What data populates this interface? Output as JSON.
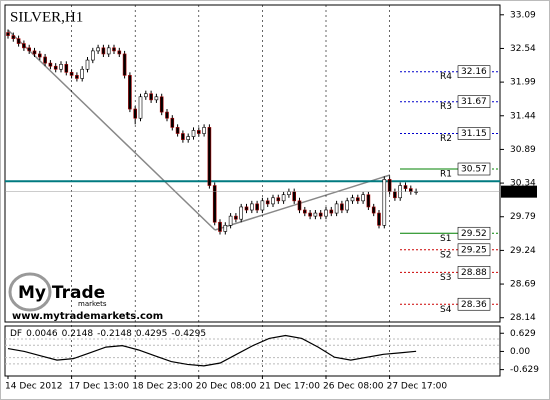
{
  "chart_data": {
    "type": "candlestick",
    "title": "SILVER,H1",
    "categories": [
      "14 Dec 2012",
      null,
      null,
      null,
      null,
      null,
      null,
      null,
      null,
      null,
      null,
      null,
      "17 Dec 13:00",
      null,
      null,
      null,
      null,
      null,
      null,
      null,
      null,
      null,
      null,
      null,
      "18 Dec 23:00",
      null,
      null,
      null,
      null,
      null,
      null,
      null,
      null,
      null,
      null,
      null,
      "20 Dec 08:00",
      null,
      null,
      null,
      null,
      null,
      null,
      null,
      null,
      null,
      null,
      null,
      "21 Dec 17:00",
      null,
      null,
      null,
      null,
      null,
      null,
      null,
      null,
      null,
      null,
      null,
      "26 Dec 08:00",
      null,
      null,
      null,
      null,
      null,
      null,
      null,
      null,
      null,
      null,
      null,
      "27 Dec 17:00",
      null,
      null,
      null,
      null,
      null
    ],
    "open": [
      32.8,
      32.75,
      32.7,
      32.62,
      32.55,
      32.5,
      32.45,
      32.4,
      32.3,
      32.25,
      32.2,
      32.28,
      32.15,
      32.1,
      32.05,
      32.2,
      32.35,
      32.5,
      32.55,
      32.45,
      32.55,
      32.5,
      32.45,
      32.1,
      31.55,
      31.4,
      31.75,
      31.8,
      31.7,
      31.75,
      31.5,
      31.4,
      31.25,
      31.15,
      31.05,
      31.1,
      31.2,
      31.15,
      31.25,
      30.3,
      29.7,
      29.55,
      29.65,
      29.8,
      29.75,
      29.95,
      29.9,
      30.0,
      29.9,
      30.05,
      30.0,
      30.1,
      30.05,
      30.15,
      30.2,
      30.05,
      29.9,
      29.85,
      29.8,
      29.85,
      29.8,
      29.9,
      29.85,
      30.0,
      29.9,
      30.05,
      30.1,
      30.05,
      30.15,
      29.95,
      29.85,
      29.65,
      30.4,
      30.2,
      30.1,
      30.3,
      30.25,
      30.2
    ],
    "high": [
      32.85,
      32.8,
      32.75,
      32.67,
      32.6,
      32.55,
      32.5,
      32.45,
      32.35,
      32.3,
      32.33,
      32.33,
      32.2,
      32.15,
      32.25,
      32.4,
      32.55,
      32.6,
      32.6,
      32.6,
      32.6,
      32.55,
      32.5,
      32.15,
      31.6,
      31.8,
      31.85,
      31.85,
      31.8,
      31.8,
      31.55,
      31.45,
      31.3,
      31.2,
      31.15,
      31.25,
      31.25,
      31.3,
      31.3,
      30.35,
      29.75,
      29.7,
      29.85,
      29.85,
      30.0,
      30.0,
      30.05,
      30.05,
      30.1,
      30.1,
      30.15,
      30.15,
      30.2,
      30.25,
      30.25,
      30.1,
      29.95,
      29.9,
      29.9,
      29.9,
      29.95,
      29.95,
      30.05,
      30.05,
      30.1,
      30.15,
      30.15,
      30.2,
      30.2,
      30.0,
      29.9,
      30.45,
      30.45,
      30.25,
      30.35,
      30.35,
      30.3,
      30.25
    ],
    "low": [
      32.7,
      32.65,
      32.57,
      32.5,
      32.45,
      32.4,
      32.35,
      32.25,
      32.2,
      32.15,
      32.15,
      32.1,
      32.05,
      32.0,
      32.0,
      32.15,
      32.3,
      32.45,
      32.4,
      32.4,
      32.45,
      32.4,
      32.05,
      31.5,
      31.3,
      31.35,
      31.7,
      31.65,
      31.65,
      31.45,
      31.35,
      31.2,
      31.1,
      31.0,
      31.0,
      31.05,
      31.1,
      31.1,
      30.25,
      29.65,
      29.5,
      29.5,
      29.6,
      29.7,
      29.7,
      29.85,
      29.85,
      29.85,
      29.85,
      29.95,
      29.95,
      30.0,
      30.0,
      30.1,
      30.0,
      29.85,
      29.8,
      29.75,
      29.75,
      29.75,
      29.75,
      29.8,
      29.8,
      29.85,
      29.85,
      30.0,
      30.0,
      30.0,
      29.9,
      29.8,
      29.6,
      29.6,
      30.15,
      30.05,
      30.05,
      30.2,
      30.15,
      30.15
    ],
    "close": [
      32.75,
      32.7,
      32.62,
      32.55,
      32.5,
      32.45,
      32.4,
      32.3,
      32.25,
      32.2,
      32.28,
      32.15,
      32.1,
      32.05,
      32.2,
      32.35,
      32.5,
      32.55,
      32.45,
      32.55,
      32.5,
      32.45,
      32.1,
      31.55,
      31.4,
      31.75,
      31.8,
      31.7,
      31.75,
      31.5,
      31.4,
      31.25,
      31.15,
      31.05,
      31.1,
      31.2,
      31.15,
      31.25,
      30.3,
      29.7,
      29.55,
      29.65,
      29.8,
      29.75,
      29.95,
      29.9,
      30.0,
      29.9,
      30.05,
      30.0,
      30.1,
      30.05,
      30.15,
      30.2,
      30.05,
      29.9,
      29.85,
      29.8,
      29.85,
      29.8,
      29.9,
      29.85,
      30.0,
      29.9,
      30.05,
      30.1,
      30.05,
      30.15,
      29.95,
      29.85,
      29.65,
      30.4,
      30.2,
      30.1,
      30.3,
      30.25,
      30.2,
      30.2
    ],
    "ylim": [
      28.07,
      33.25
    ],
    "yticks": [
      33.09,
      32.54,
      31.99,
      31.44,
      30.89,
      30.34,
      29.79,
      29.24,
      28.69,
      28.14
    ],
    "last": {
      "value": 30.2,
      "label": "30.20"
    },
    "hline": {
      "value": 30.37,
      "color": "#007a80"
    },
    "pivots": [
      {
        "name": "R4",
        "value": 32.16,
        "color": "#0000cc"
      },
      {
        "name": "R3",
        "value": 31.67,
        "color": "#0000cc"
      },
      {
        "name": "R2",
        "value": 31.15,
        "color": "#0000cc"
      },
      {
        "name": "R1",
        "value": 30.57,
        "color": "#008000"
      },
      {
        "name": "S1",
        "value": 29.52,
        "color": "#008000"
      },
      {
        "name": "S2",
        "value": 29.25,
        "color": "#cc0000"
      },
      {
        "name": "S3",
        "value": 28.88,
        "color": "#cc0000"
      },
      {
        "name": "S4",
        "value": 28.36,
        "color": "#cc0000"
      }
    ],
    "indicator": {
      "name": "DF",
      "value": 0.0046,
      "levels": [
        0.2148,
        -0.2148,
        0.4295,
        -0.4295
      ],
      "values": [
        0.1,
        0.0,
        -0.15,
        -0.3,
        -0.25,
        -0.05,
        0.15,
        0.2,
        0.05,
        -0.15,
        -0.35,
        -0.45,
        -0.5,
        -0.4,
        -0.1,
        0.2,
        0.45,
        0.55,
        0.45,
        0.15,
        -0.2,
        -0.3,
        -0.2,
        -0.1,
        -0.05,
        0.0046
      ],
      "ylim": [
        -0.85,
        0.88
      ],
      "yticks": [
        0.629,
        {
          "value": 0,
          "label": "0.00"
        },
        -0.629
      ]
    }
  },
  "logo": {
    "brand": "My Trade",
    "sub": "markets",
    "url": "www.mytrademarkets.com"
  }
}
